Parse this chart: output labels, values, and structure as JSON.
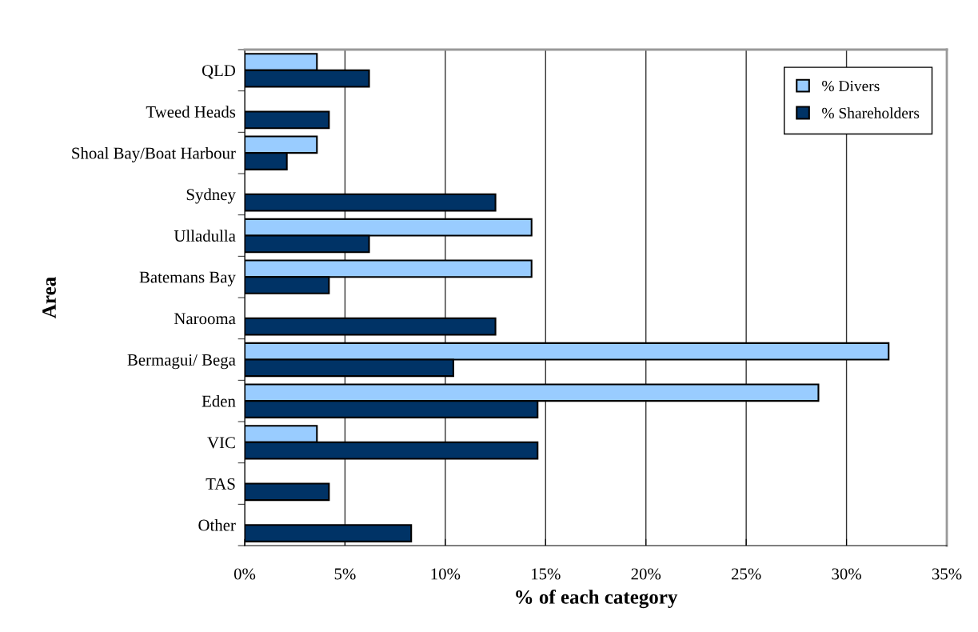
{
  "chart_data": {
    "type": "bar",
    "orientation": "horizontal",
    "xlabel": "% of each category",
    "ylabel": "Area",
    "categories": [
      "QLD",
      "Tweed Heads",
      "Shoal Bay/Boat Harbour",
      "Sydney",
      "Ulladulla",
      "Batemans Bay",
      "Narooma",
      "Bermagui/ Bega",
      "Eden",
      "VIC",
      "TAS",
      "Other"
    ],
    "series": [
      {
        "name": "% Divers",
        "color": "#99ccff",
        "values": [
          3.6,
          null,
          3.6,
          null,
          14.3,
          14.3,
          null,
          32.1,
          28.6,
          3.6,
          null,
          null
        ]
      },
      {
        "name": "% Shareholders",
        "color": "#003366",
        "values": [
          6.2,
          4.2,
          2.1,
          12.5,
          6.2,
          4.2,
          12.5,
          10.4,
          14.6,
          14.6,
          4.2,
          8.3
        ]
      }
    ],
    "xlim": [
      0,
      35
    ],
    "xticks": [
      {
        "value": 0,
        "label": "0%"
      },
      {
        "value": 5,
        "label": "5%"
      },
      {
        "value": 10,
        "label": "10%"
      },
      {
        "value": 15,
        "label": "15%"
      },
      {
        "value": 20,
        "label": "20%"
      },
      {
        "value": 25,
        "label": "25%"
      },
      {
        "value": 30,
        "label": "30%"
      },
      {
        "value": 35,
        "label": "35%"
      }
    ],
    "grid": "x",
    "legend": "top right"
  }
}
